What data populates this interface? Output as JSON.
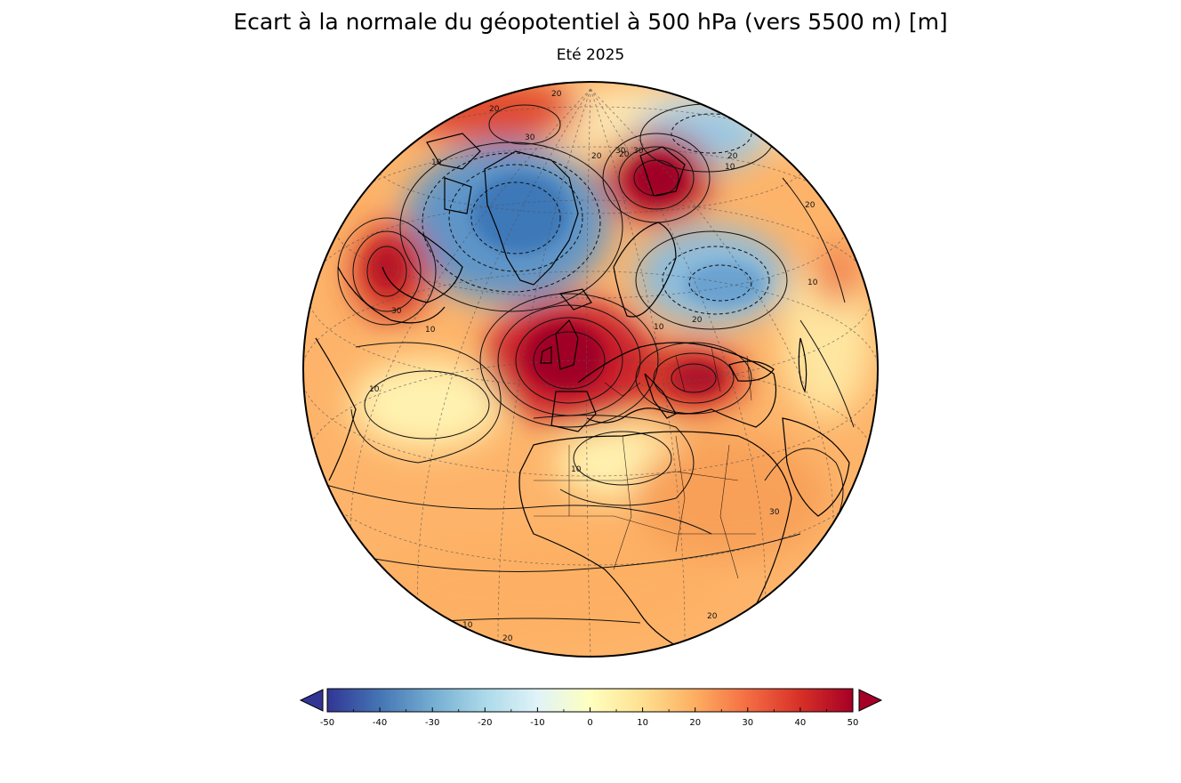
{
  "title": "Ecart à la normale du géopotentiel à 500 hPa (vers 5500 m)  [m]",
  "subtitle": "Eté 2025",
  "colorbar": {
    "min": -50,
    "max": 50,
    "ticks": [
      "-50",
      "-40",
      "-30",
      "-20",
      "-10",
      "0",
      "10",
      "20",
      "30",
      "40",
      "50"
    ],
    "extend": "both",
    "colors": [
      "#313695",
      "#4575b4",
      "#74add1",
      "#abd9e9",
      "#e0f3f8",
      "#ffffbf",
      "#fee090",
      "#fdae61",
      "#f46d43",
      "#d73027",
      "#a50026"
    ]
  },
  "map": {
    "projection": "orthographic",
    "region": "Europe / North Atlantic",
    "contour_labels": [
      "30",
      "20",
      "30",
      "10",
      "20",
      "10",
      "10",
      "20",
      "30",
      "20",
      "20",
      "10",
      "10",
      "10",
      "20",
      "30",
      "20",
      "10",
      "20",
      "20",
      "10",
      "20",
      "30"
    ],
    "anomalies": [
      {
        "name": "greenland-low",
        "sign": "negative"
      },
      {
        "name": "scandinavia-low",
        "sign": "negative"
      },
      {
        "name": "arctic-low",
        "sign": "negative"
      },
      {
        "name": "western-europe-high",
        "sign": "positive"
      },
      {
        "name": "balkans-high",
        "sign": "positive"
      },
      {
        "name": "labrador-high",
        "sign": "positive"
      },
      {
        "name": "barents-high",
        "sign": "positive"
      },
      {
        "name": "north-pole-high",
        "sign": "positive"
      }
    ]
  }
}
